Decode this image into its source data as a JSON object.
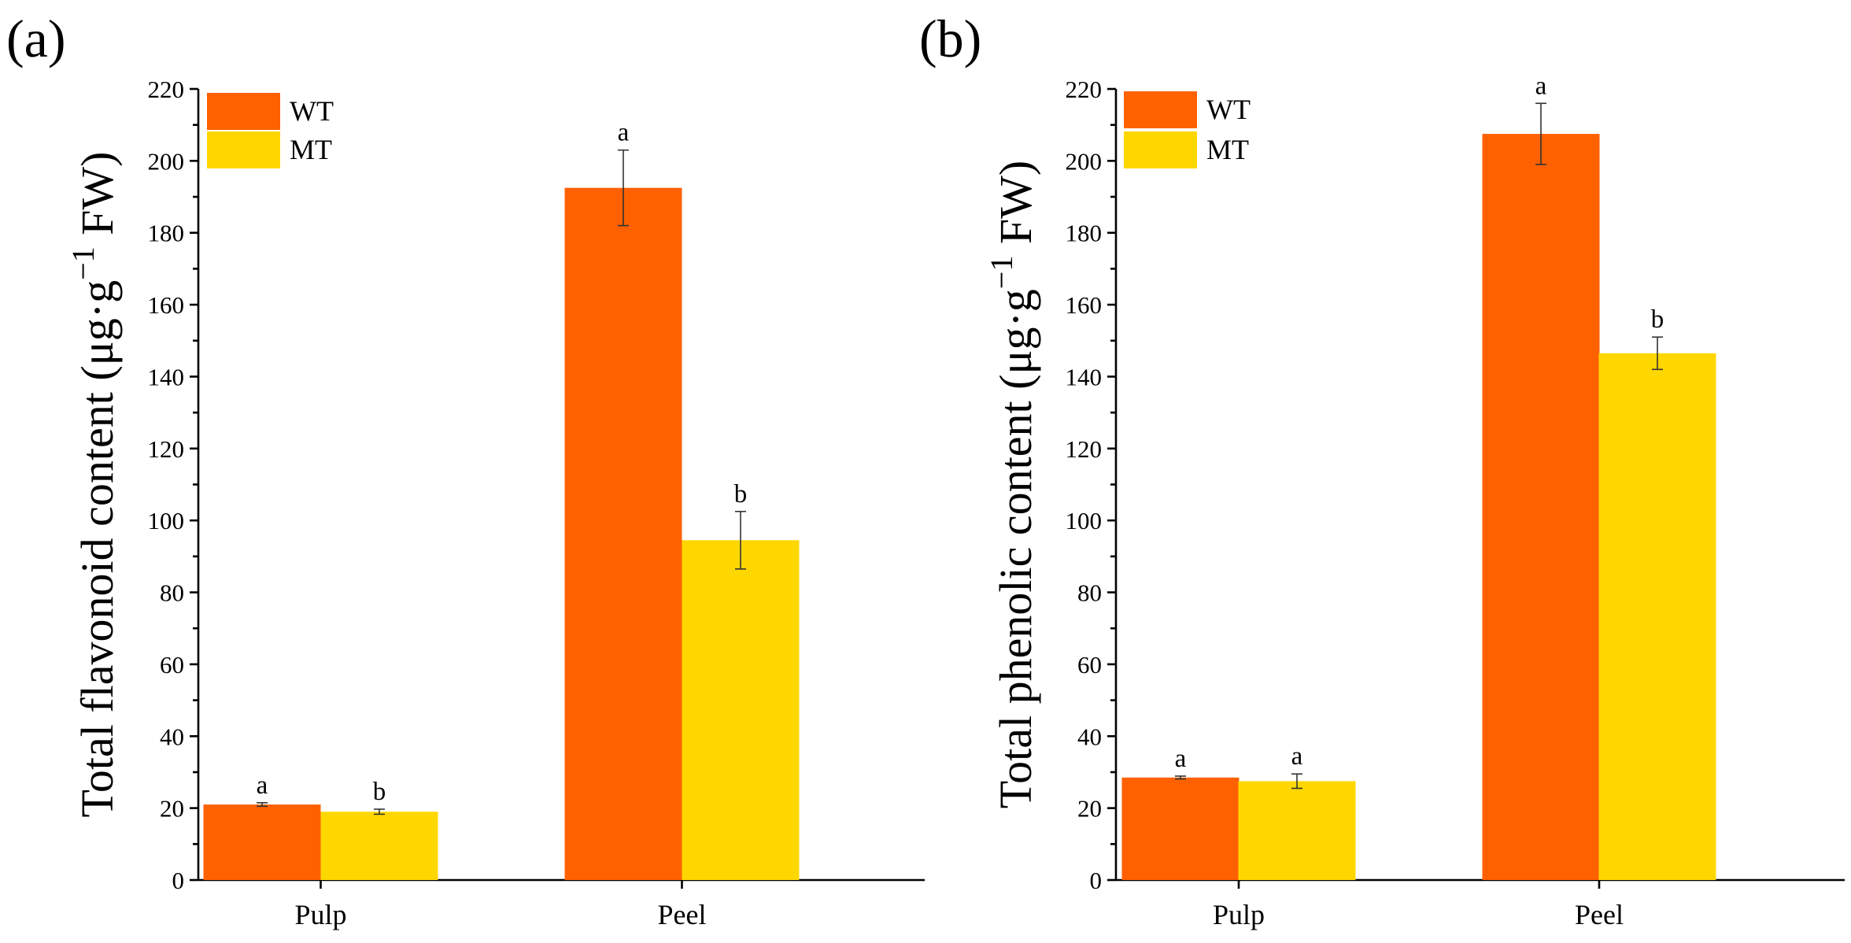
{
  "colors": {
    "WT": "#FF6100",
    "MT": "#FFD700"
  },
  "chart_data": [
    {
      "type": "bar",
      "panel_label": "(a)",
      "ylabel": "Total flavonoid content (μg·g",
      "ylabel_sup": "−1",
      "ylabel_tail": " FW)",
      "ylim": [
        0,
        220
      ],
      "yticks": [
        "0",
        "20",
        "40",
        "60",
        "80",
        "100",
        "120",
        "140",
        "160",
        "180",
        "200",
        "220"
      ],
      "categories": [
        "Pulp",
        "Peel"
      ],
      "series": [
        {
          "name": "WT",
          "values": [
            21,
            192.5
          ],
          "errors": [
            0.5,
            10.5
          ],
          "letters": [
            "a",
            "a"
          ]
        },
        {
          "name": "MT",
          "values": [
            19,
            94.5
          ],
          "errors": [
            0.7,
            8
          ],
          "letters": [
            "b",
            "b"
          ]
        }
      ],
      "legend": [
        "WT",
        "MT"
      ]
    },
    {
      "type": "bar",
      "panel_label": "(b)",
      "ylabel": "Total phenolic content (μg·g",
      "ylabel_sup": "−1",
      "ylabel_tail": " FW)",
      "ylim": [
        0,
        220
      ],
      "yticks": [
        "0",
        "20",
        "40",
        "60",
        "80",
        "100",
        "120",
        "140",
        "160",
        "180",
        "200",
        "220"
      ],
      "categories": [
        "Pulp",
        "Peel"
      ],
      "series": [
        {
          "name": "WT",
          "values": [
            28.5,
            207.5
          ],
          "errors": [
            0.4,
            8.5
          ],
          "letters": [
            "a",
            "a"
          ]
        },
        {
          "name": "MT",
          "values": [
            27.5,
            146.5
          ],
          "errors": [
            2,
            4.5
          ],
          "letters": [
            "a",
            "b"
          ]
        }
      ],
      "legend": [
        "WT",
        "MT"
      ]
    }
  ]
}
